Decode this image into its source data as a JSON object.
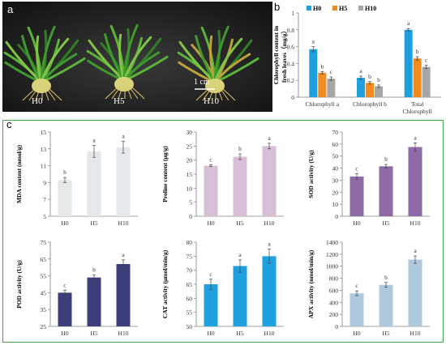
{
  "panel_labels": {
    "a": "a",
    "b": "b",
    "c": "c"
  },
  "photo": {
    "labels": [
      "H0",
      "H5",
      "H10"
    ],
    "scale_bar": "1 cm"
  },
  "chart_data": [
    {
      "id": "b",
      "type": "bar",
      "title": "",
      "ylabel": "Chlorophyll content in fresh leaves（mg/g）",
      "categories": [
        "Chlorophyll a",
        "Chlorophyll b",
        "Total Chlorophyll"
      ],
      "ylim": [
        0,
        1
      ],
      "yticks": [
        0,
        0.2,
        0.4,
        0.6,
        0.8,
        1
      ],
      "legend_position": "top",
      "series": [
        {
          "name": "H0",
          "values": [
            0.57,
            0.23,
            0.8
          ],
          "errors": [
            0.03,
            0.02,
            0.015
          ],
          "letters": [
            "a",
            "a",
            "a"
          ],
          "color": "#1e9fde"
        },
        {
          "name": "H5",
          "values": [
            0.29,
            0.17,
            0.46
          ],
          "errors": [
            0.015,
            0.015,
            0.02
          ],
          "letters": [
            "b",
            "b",
            "b"
          ],
          "color": "#f28a1e"
        },
        {
          "name": "H10",
          "values": [
            0.22,
            0.13,
            0.36
          ],
          "errors": [
            0.02,
            0.015,
            0.02
          ],
          "letters": [
            "c",
            "b",
            "c"
          ],
          "color": "#a6a6a6"
        }
      ]
    },
    {
      "id": "mda",
      "type": "bar",
      "ylabel": "MDA content (nmol/g)",
      "categories": [
        "H0",
        "H5",
        "H10"
      ],
      "values": [
        9.3,
        12.7,
        13.2
      ],
      "errors": [
        0.3,
        0.7,
        0.7
      ],
      "letters": [
        "b",
        "a",
        "a"
      ],
      "ylim": [
        5,
        15
      ],
      "yticks": [
        5,
        7,
        9,
        11,
        13,
        15
      ],
      "color": "#e4e8ea"
    },
    {
      "id": "proline",
      "type": "bar",
      "ylabel": "Proline content (μg/g)",
      "categories": [
        "H0",
        "H5",
        "H10"
      ],
      "values": [
        18,
        21.2,
        25
      ],
      "errors": [
        0.3,
        1,
        1
      ],
      "letters": [
        "c",
        "b",
        "a"
      ],
      "ylim": [
        0,
        30
      ],
      "yticks": [
        0,
        5,
        10,
        15,
        20,
        25,
        30
      ],
      "color": "#d8bfd8"
    },
    {
      "id": "sod",
      "type": "bar",
      "ylabel": "SOD activity (U/g)",
      "categories": [
        "H0",
        "H5",
        "H10"
      ],
      "values": [
        33,
        41.5,
        57.5
      ],
      "errors": [
        2.5,
        1.5,
        3.5
      ],
      "letters": [
        "c",
        "b",
        "a"
      ],
      "ylim": [
        0,
        70
      ],
      "yticks": [
        0,
        10,
        20,
        30,
        40,
        50,
        60,
        70
      ],
      "color": "#8e6ba6"
    },
    {
      "id": "pod",
      "type": "bar",
      "ylabel": "POD activity (U/g)",
      "categories": [
        "H0",
        "H5",
        "H10"
      ],
      "values": [
        45,
        54,
        62
      ],
      "errors": [
        1.5,
        1.5,
        2.5
      ],
      "letters": [
        "c",
        "b",
        "a"
      ],
      "ylim": [
        25,
        75
      ],
      "yticks": [
        25,
        35,
        45,
        55,
        65,
        75
      ],
      "color": "#3b3e7a"
    },
    {
      "id": "cat",
      "type": "bar",
      "ylabel": "CAT activity (μmol/min/g)",
      "categories": [
        "H0",
        "H5",
        "H10"
      ],
      "values": [
        65,
        71.5,
        75
      ],
      "errors": [
        1.8,
        2.2,
        2.5
      ],
      "letters": [
        "c",
        "a",
        "a"
      ],
      "ylim": [
        50,
        80
      ],
      "yticks": [
        50,
        55,
        60,
        65,
        70,
        75,
        80
      ],
      "color": "#1e9fde"
    },
    {
      "id": "apx",
      "type": "bar",
      "ylabel": "APX activity (nmol/min/g)",
      "categories": [
        "H0",
        "H5",
        "H10"
      ],
      "values": [
        550,
        690,
        1110
      ],
      "errors": [
        40,
        40,
        60
      ],
      "letters": [
        "c",
        "b",
        "a"
      ],
      "ylim": [
        0,
        1400
      ],
      "yticks": [
        0,
        200,
        400,
        600,
        800,
        1000,
        1200,
        1400
      ],
      "color": "#aec8dc"
    }
  ]
}
